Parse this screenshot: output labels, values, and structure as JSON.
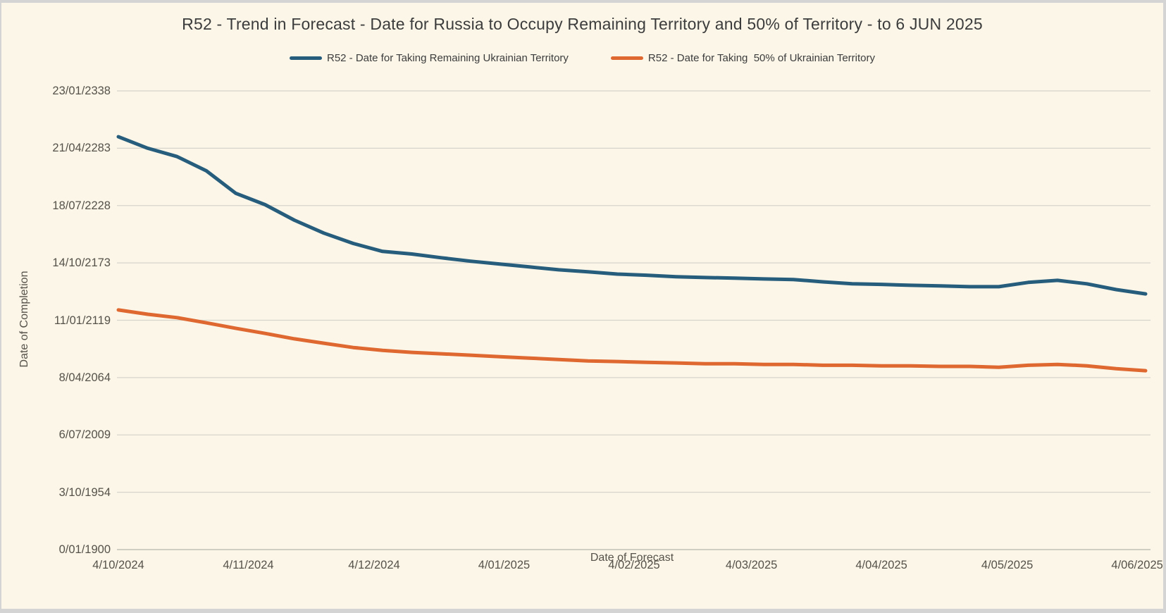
{
  "title": "R52 - Trend in Forecast - Date for Russia to Occupy Remaining Territory and 50% of Territory - to 6 JUN 2025",
  "legend": {
    "items": [
      {
        "label": "R52 - Date for Taking Remaining Ukrainian Territory",
        "color": "#265C7C"
      },
      {
        "label": "R52 - Date for Taking  50% of Ukrainian Territory",
        "color": "#DE6830"
      }
    ]
  },
  "colors": {
    "background": "#FBF6E8",
    "frame_border": "#D4D4D4",
    "gridline": "#D7D4CC",
    "axis_line": "#C2BFB6",
    "title_text": "#3C3C3C",
    "tick_text": "#56524A",
    "series_remaining": "#265C7C",
    "series_fifty_pct": "#DE6830"
  },
  "axes": {
    "y": {
      "title": "Date of Completion",
      "ticks": [
        {
          "label": "23/01/2338",
          "serial": 160000
        },
        {
          "label": "21/04/2283",
          "serial": 140000
        },
        {
          "label": "18/07/2228",
          "serial": 120000
        },
        {
          "label": "14/10/2173",
          "serial": 100000
        },
        {
          "label": "11/01/2119",
          "serial": 80000
        },
        {
          "label": "8/04/2064",
          "serial": 60000
        },
        {
          "label": "6/07/2009",
          "serial": 40000
        },
        {
          "label": "3/10/1954",
          "serial": 20000
        },
        {
          "label": "0/01/1900",
          "serial": 0
        }
      ]
    },
    "x": {
      "title": "Date of Forecast",
      "ticks": [
        {
          "label": "4/10/2024",
          "date": "2024-10-04"
        },
        {
          "label": "4/11/2024",
          "date": "2024-11-04"
        },
        {
          "label": "4/12/2024",
          "date": "2024-12-04"
        },
        {
          "label": "4/01/2025",
          "date": "2025-01-04"
        },
        {
          "label": "4/02/2025",
          "date": "2025-02-04"
        },
        {
          "label": "4/03/2025",
          "date": "2025-03-04"
        },
        {
          "label": "4/04/2025",
          "date": "2025-04-04"
        },
        {
          "label": "4/05/2025",
          "date": "2025-05-04"
        },
        {
          "label": "4/06/2025",
          "date": "2025-06-04"
        }
      ]
    }
  },
  "chart_data": {
    "type": "line",
    "title": "R52 - Trend in Forecast - Date for Russia to Occupy Remaining Territory and 50% of Territory - to 6 JUN 2025",
    "xlabel": "Date of Forecast",
    "ylabel": "Date of Completion",
    "ylim": [
      0,
      160000
    ],
    "ytick_interval": 20000,
    "y_units": "days since 0/01/1900 (date serial), axis labels formatted d/mm/yyyy",
    "grid": "horizontal-only",
    "legend_position": "top-center",
    "x": [
      "2024-10-04",
      "2024-10-11",
      "2024-10-18",
      "2024-10-25",
      "2024-11-01",
      "2024-11-08",
      "2024-11-15",
      "2024-11-22",
      "2024-11-29",
      "2024-12-06",
      "2024-12-13",
      "2024-12-20",
      "2024-12-27",
      "2025-01-03",
      "2025-01-10",
      "2025-01-17",
      "2025-01-24",
      "2025-01-31",
      "2025-02-07",
      "2025-02-14",
      "2025-02-21",
      "2025-02-28",
      "2025-03-07",
      "2025-03-14",
      "2025-03-21",
      "2025-03-28",
      "2025-04-04",
      "2025-04-11",
      "2025-04-18",
      "2025-04-25",
      "2025-05-02",
      "2025-05-09",
      "2025-05-16",
      "2025-05-23",
      "2025-05-30",
      "2025-06-06"
    ],
    "series": [
      {
        "id": "remaining-territory",
        "name": "R52 - Date for Taking Remaining Ukrainian Territory",
        "color": "#265C7C",
        "values": [
          144000,
          140000,
          137100,
          132100,
          124300,
          120300,
          114900,
          110400,
          106800,
          104000,
          103100,
          101800,
          100600,
          99600,
          98600,
          97600,
          96900,
          96100,
          95700,
          95200,
          94900,
          94700,
          94400,
          94200,
          93400,
          92700,
          92500,
          92200,
          92000,
          91700,
          91700,
          93200,
          93900,
          92700,
          90700,
          89200
        ]
      },
      {
        "id": "fifty-percent-territory",
        "name": "R52 - Date for Taking  50% of Ukrainian Territory",
        "color": "#DE6830",
        "values": [
          83600,
          82100,
          80900,
          79100,
          77200,
          75400,
          73500,
          72000,
          70500,
          69500,
          68800,
          68300,
          67800,
          67300,
          66800,
          66300,
          65800,
          65600,
          65300,
          65100,
          64800,
          64800,
          64600,
          64600,
          64300,
          64300,
          64100,
          64100,
          63900,
          63900,
          63600,
          64300,
          64600,
          64100,
          63100,
          62400
        ]
      }
    ]
  }
}
